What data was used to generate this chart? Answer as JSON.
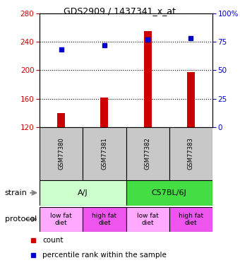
{
  "title": "GDS2909 / 1437341_x_at",
  "samples": [
    "GSM77380",
    "GSM77381",
    "GSM77382",
    "GSM77383"
  ],
  "counts": [
    140,
    162,
    255,
    197
  ],
  "count_baseline": 120,
  "percentiles": [
    68,
    72,
    77,
    78
  ],
  "ylim_left": [
    120,
    280
  ],
  "ylim_right": [
    0,
    100
  ],
  "yticks_left": [
    120,
    160,
    200,
    240,
    280
  ],
  "yticks_right": [
    0,
    25,
    50,
    75,
    100
  ],
  "ytick_labels_right": [
    "0",
    "25",
    "50",
    "75",
    "100%"
  ],
  "bar_color": "#cc0000",
  "dot_color": "#0000cc",
  "bar_width": 0.18,
  "strain_color_aj": "#ccffcc",
  "strain_color_c57": "#44dd44",
  "protocol_colors": [
    "#ffaaff",
    "#ee55ee",
    "#ffaaff",
    "#ee55ee"
  ],
  "protocol_labels": [
    "low fat\ndiet",
    "high fat\ndiet",
    "low fat\ndiet",
    "high fat\ndiet"
  ],
  "sample_box_color": "#c8c8c8",
  "left_axis_color": "#cc0000",
  "right_axis_color": "#0000cc"
}
